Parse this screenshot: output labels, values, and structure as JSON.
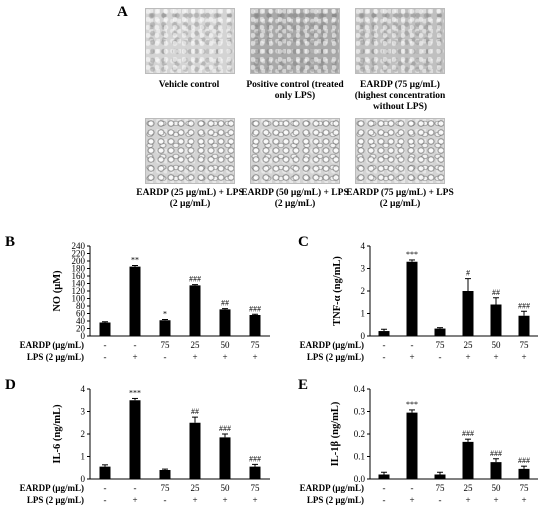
{
  "panel_letters": [
    "A",
    "B",
    "C",
    "D",
    "E"
  ],
  "images": [
    {
      "caption": "Vehicle control",
      "tone": "light"
    },
    {
      "caption": "Positive control (treated only LPS)",
      "tone": "dark"
    },
    {
      "caption": "EARDP (75 µg/mL) (highest concentration without LPS)",
      "tone": "mid"
    },
    {
      "caption": "EARDP (25 µg/mL) + LPS (2 µg/mL)",
      "tone": "cells"
    },
    {
      "caption": "EARDP (50 µg/mL) + LPS (2 µg/mL)",
      "tone": "cells"
    },
    {
      "caption": "EARDP (75 µg/mL) + LPS (2 µg/mL)",
      "tone": "cells"
    }
  ],
  "treatment_labels": {
    "eardp": "EARDP (µg/mL)",
    "lps": "LPS (2 µg/mL)"
  },
  "chart_data": [
    {
      "type": "bar",
      "panel": "B",
      "ylabel": "NO (µM)",
      "ylim": [
        0,
        240
      ],
      "yticks": [
        0,
        20,
        40,
        60,
        80,
        100,
        120,
        140,
        160,
        180,
        200,
        220,
        240
      ],
      "eardp_row": [
        "-",
        "-",
        "75",
        "25",
        "50",
        "75"
      ],
      "lps_row": [
        "-",
        "+",
        "-",
        "+",
        "+",
        "+"
      ],
      "values": [
        36,
        185,
        42,
        135,
        71,
        56
      ],
      "errors": [
        2,
        3,
        2,
        2,
        2,
        2
      ],
      "significance": [
        "",
        "**",
        "*",
        "###",
        "##",
        "###"
      ]
    },
    {
      "type": "bar",
      "panel": "C",
      "ylabel": "TNF-α (ng/mL)",
      "ylim": [
        0,
        4
      ],
      "yticks": [
        0,
        1,
        2,
        3,
        4
      ],
      "eardp_row": [
        "-",
        "-",
        "75",
        "25",
        "50",
        "75"
      ],
      "lps_row": [
        "-",
        "+",
        "-",
        "+",
        "+",
        "+"
      ],
      "values": [
        0.22,
        3.3,
        0.33,
        2.0,
        1.4,
        0.9
      ],
      "errors": [
        0.08,
        0.08,
        0.04,
        0.55,
        0.3,
        0.2
      ],
      "significance": [
        "",
        "***",
        "",
        "#",
        "##",
        "###"
      ]
    },
    {
      "type": "bar",
      "panel": "D",
      "ylabel": "IL-6 (ng/mL)",
      "ylim": [
        0,
        4
      ],
      "yticks": [
        0,
        1,
        2,
        3,
        4
      ],
      "eardp_row": [
        "-",
        "-",
        "75",
        "25",
        "50",
        "75"
      ],
      "lps_row": [
        "-",
        "+",
        "-",
        "+",
        "+",
        "+"
      ],
      "values": [
        0.55,
        3.5,
        0.4,
        2.5,
        1.85,
        0.55
      ],
      "errors": [
        0.08,
        0.08,
        0.04,
        0.25,
        0.15,
        0.1
      ],
      "significance": [
        "",
        "***",
        "",
        "##",
        "###",
        "###"
      ]
    },
    {
      "type": "bar",
      "panel": "E",
      "ylabel": "IL-1β (ng/mL)",
      "ylim": [
        0,
        0.4
      ],
      "yticks": [
        0,
        0.1,
        0.2,
        0.3,
        0.4
      ],
      "eardp_row": [
        "-",
        "-",
        "75",
        "25",
        "50",
        "75"
      ],
      "lps_row": [
        "-",
        "+",
        "-",
        "+",
        "+",
        "+"
      ],
      "values": [
        0.02,
        0.295,
        0.02,
        0.165,
        0.075,
        0.045
      ],
      "errors": [
        0.01,
        0.012,
        0.01,
        0.012,
        0.015,
        0.012
      ],
      "significance": [
        "",
        "***",
        "",
        "###",
        "###",
        "###"
      ]
    }
  ]
}
